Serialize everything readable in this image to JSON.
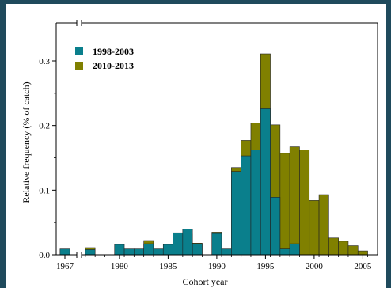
{
  "colors": {
    "background": "#1f4a5c",
    "series_1998_2003": "#0a7f8c",
    "series_2010_2013": "#808000",
    "axis": "#000000"
  },
  "chart_data": {
    "type": "bar",
    "title": "",
    "xlabel": "Cohort year",
    "ylabel": "Relative frequency (% of catch)",
    "xlim": [
      1965.5,
      2006.5
    ],
    "ylim": [
      0,
      0.34
    ],
    "x_axis_break": "between 1967 and 1977",
    "x_ticks": [
      1967,
      1980,
      1985,
      1990,
      1995,
      2000,
      2005
    ],
    "x_tick_labels": [
      "1967",
      "1980",
      "1985",
      "1990",
      "1995",
      "2000",
      "2005"
    ],
    "y_ticks": [
      0.0,
      0.1,
      0.2,
      0.3
    ],
    "y_tick_labels": [
      "0.0",
      "0.1",
      "0.2",
      "0.3"
    ],
    "grid": false,
    "legend_position": "top-left",
    "bar_style": "overlapping; 1998-2003 drawn in front of 2010-2013",
    "series": [
      {
        "name": "1998-2003",
        "color": "#0a7f8c",
        "x": [
          1967,
          1977,
          1980,
          1981,
          1982,
          1983,
          1984,
          1985,
          1986,
          1987,
          1988,
          1990,
          1991,
          1992,
          1993,
          1994,
          1995,
          1996,
          1997,
          1998
        ],
        "values": [
          0.009,
          0.008,
          0.016,
          0.009,
          0.009,
          0.017,
          0.009,
          0.016,
          0.034,
          0.04,
          0.017,
          0.033,
          0.009,
          0.129,
          0.153,
          0.162,
          0.226,
          0.089,
          0.009,
          0.017
        ]
      },
      {
        "name": "2010-2013",
        "color": "#808000",
        "x": [
          1977,
          1983,
          1987,
          1988,
          1990,
          1992,
          1993,
          1994,
          1995,
          1996,
          1997,
          1998,
          1999,
          2000,
          2001,
          2002,
          2003,
          2004,
          2005
        ],
        "values": [
          0.011,
          0.022,
          0.032,
          0.018,
          0.035,
          0.135,
          0.177,
          0.204,
          0.311,
          0.201,
          0.157,
          0.167,
          0.162,
          0.084,
          0.093,
          0.026,
          0.021,
          0.014,
          0.006
        ]
      }
    ]
  }
}
